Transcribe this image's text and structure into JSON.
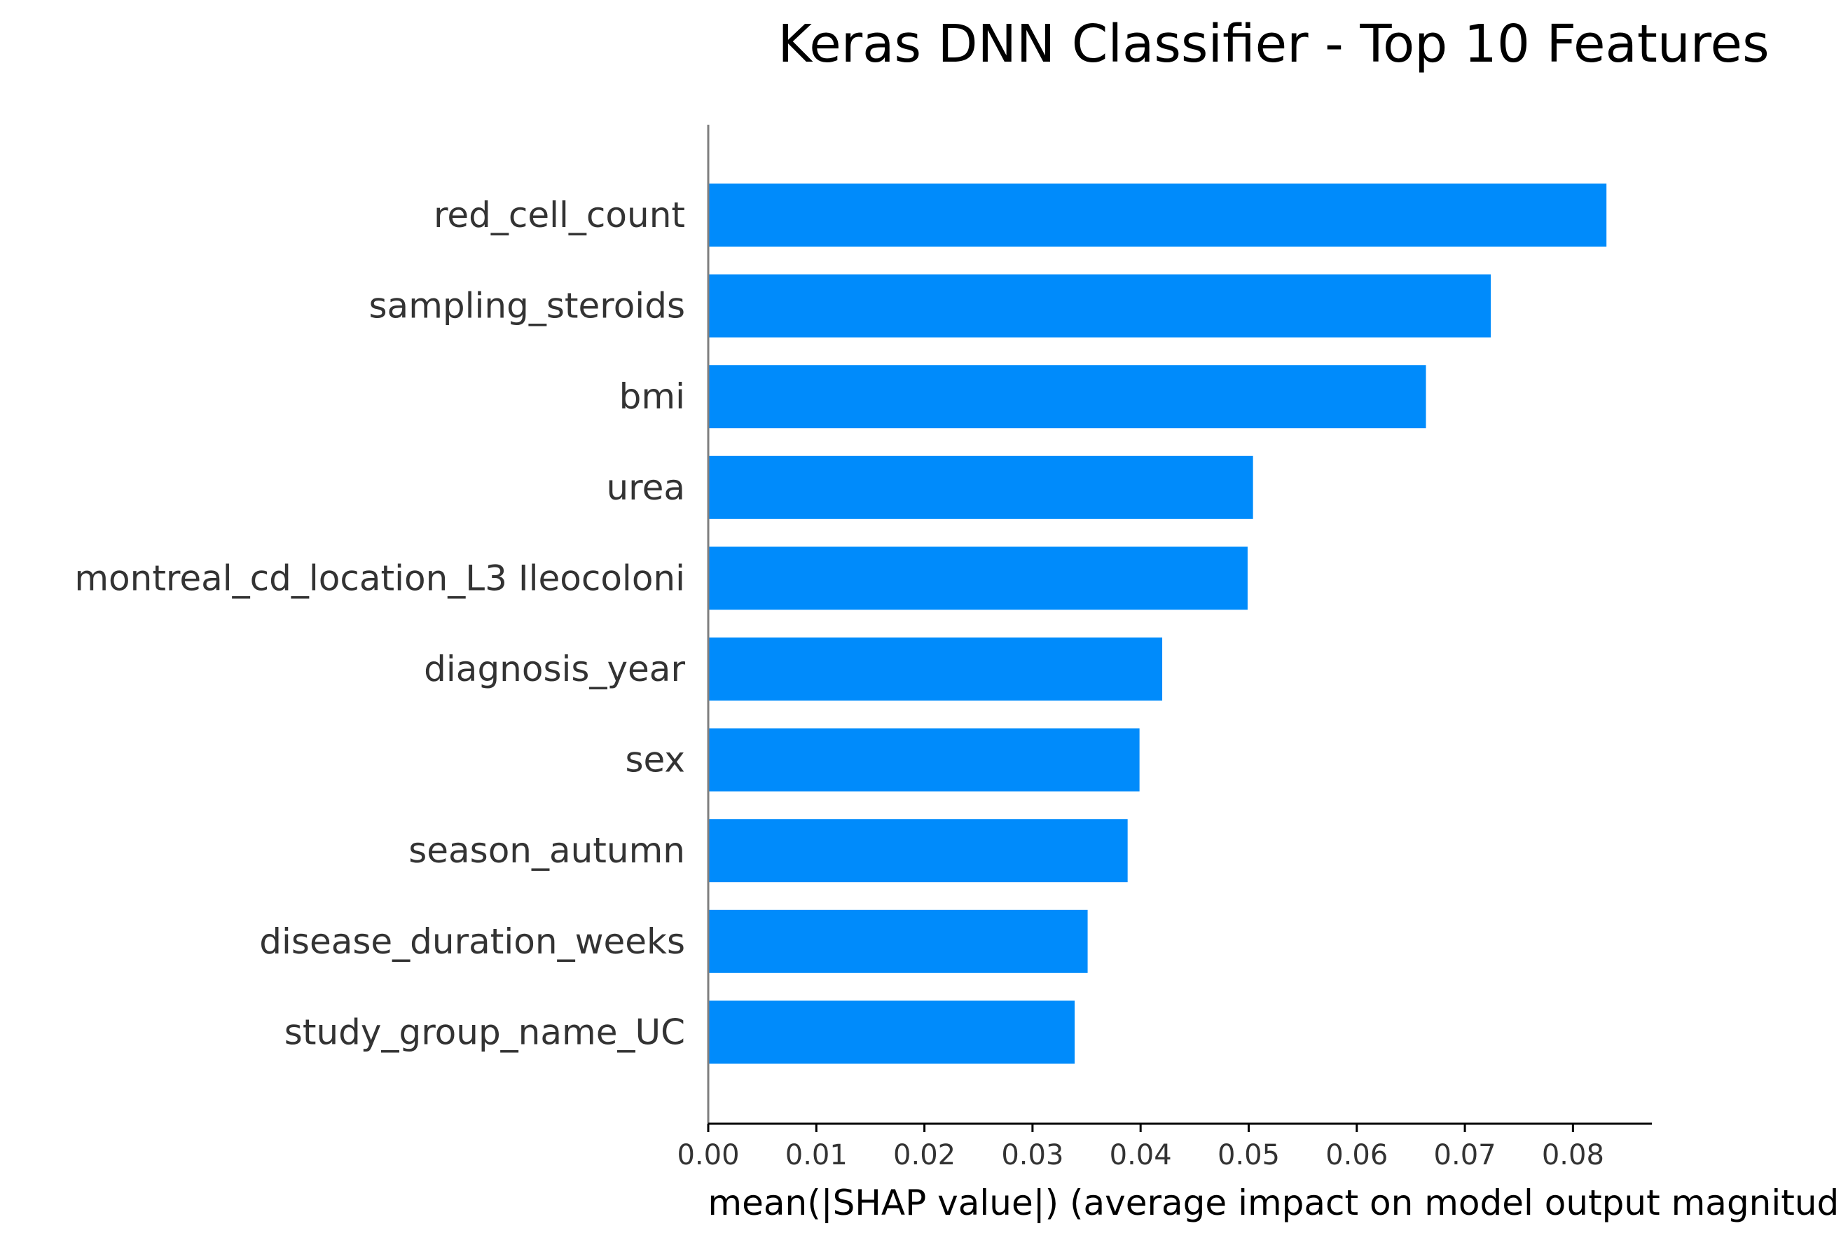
{
  "chart_data": {
    "type": "bar",
    "orientation": "horizontal",
    "title": "Keras DNN Classifier - Top 10 Features",
    "xlabel": "mean(|SHAP value|) (average impact on model output magnitude)",
    "ylabel": "",
    "categories": [
      "red_cell_count",
      "sampling_steroids",
      "bmi",
      "urea",
      "montreal_cd_location_L3 Ileocoloni",
      "diagnosis_year",
      "sex",
      "season_autumn",
      "disease_duration_weeks",
      "study_group_name_UC"
    ],
    "values": [
      0.0831,
      0.0724,
      0.0664,
      0.0504,
      0.0499,
      0.042,
      0.0399,
      0.0388,
      0.0351,
      0.0339
    ],
    "xlim": [
      0,
      0.0873
    ],
    "xticks": [
      0.0,
      0.01,
      0.02,
      0.03,
      0.04,
      0.05,
      0.06,
      0.07,
      0.08
    ],
    "xtick_labels": [
      "0.00",
      "0.01",
      "0.02",
      "0.03",
      "0.04",
      "0.05",
      "0.06",
      "0.07",
      "0.08"
    ],
    "bar_color": "#008bfb",
    "grid": false,
    "legend": "none"
  }
}
